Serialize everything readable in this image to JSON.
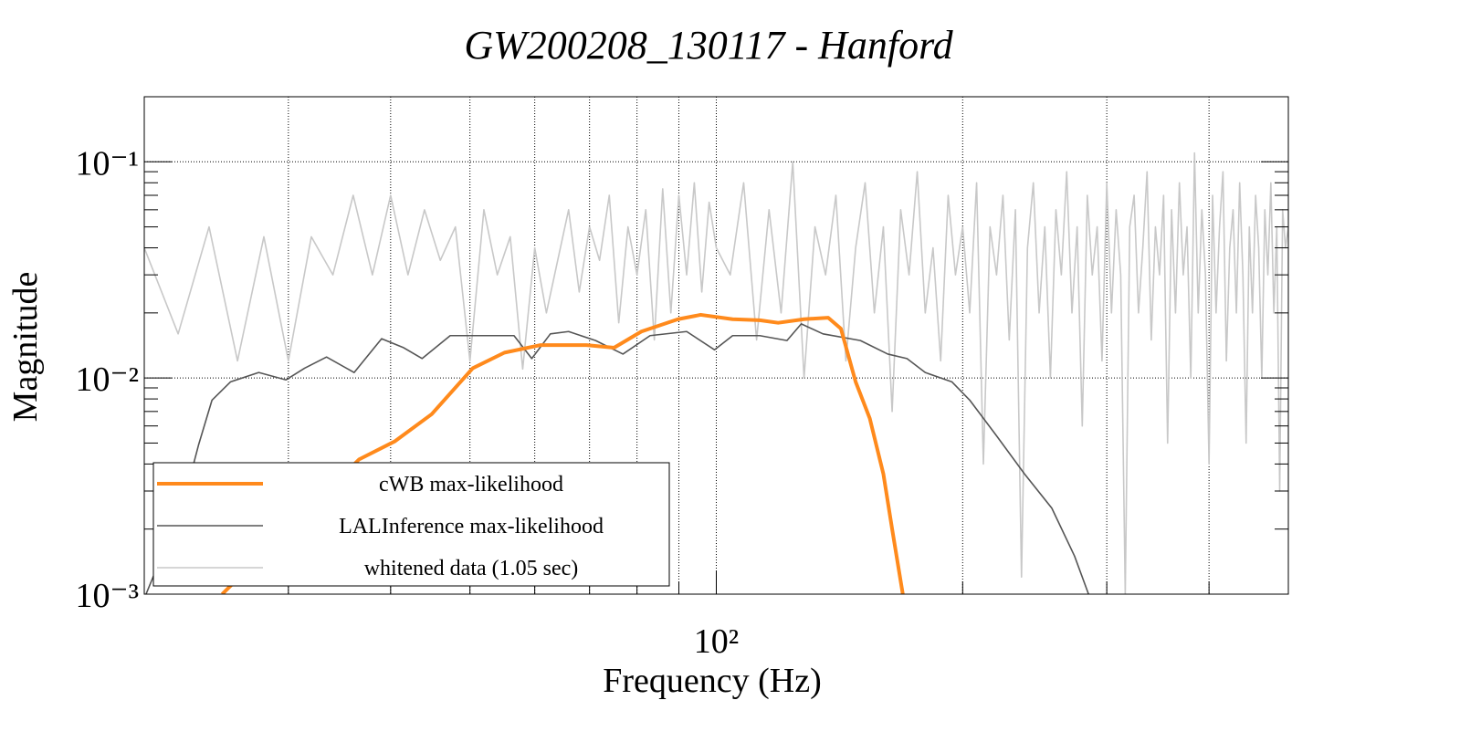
{
  "chart_data": {
    "type": "line",
    "title": "GW200208_130117 - Hanford",
    "x_label": "Frequency (Hz)",
    "y_label": "Magnitude",
    "log_x": true,
    "log_y": true,
    "grid": true,
    "legend_position": "lower-left",
    "xlim": [
      20,
      500
    ],
    "ylim": [
      0.001,
      0.2
    ],
    "xticks": [
      {
        "value": 100,
        "label": "10²"
      }
    ],
    "xgrid": [
      30,
      40,
      50,
      60,
      70,
      80,
      90,
      200,
      300,
      400
    ],
    "yticks": [
      {
        "value": 0.001,
        "label": "10⁻³"
      },
      {
        "value": 0.01,
        "label": "10⁻²"
      },
      {
        "value": 0.1,
        "label": "10⁻¹"
      }
    ],
    "series": [
      {
        "name": "cWB max-likelihood",
        "color": "#ff8a1c",
        "width": 4,
        "x": [
          24.9,
          36.6,
          40.5,
          44.9,
          50.4,
          55.1,
          61,
          69.4,
          75,
          81,
          89.8,
          95.7,
          104.7,
          113,
          119,
          128,
          137,
          142,
          148,
          154,
          160,
          164,
          169
        ],
        "values": [
          0.001,
          0.0042,
          0.0051,
          0.0068,
          0.0111,
          0.0131,
          0.0142,
          0.0142,
          0.0138,
          0.0164,
          0.0187,
          0.0196,
          0.0187,
          0.0185,
          0.018,
          0.0187,
          0.019,
          0.0169,
          0.0096,
          0.0065,
          0.0036,
          0.002,
          0.001
        ]
      },
      {
        "name": "LALInference max-likelihood",
        "color": "#555555",
        "width": 1.6,
        "x": [
          20.1,
          22.3,
          23.3,
          24.2,
          25.5,
          27.6,
          29.8,
          31.4,
          33.4,
          36.1,
          39,
          41.5,
          43.7,
          47.3,
          51,
          56.6,
          59.5,
          62.7,
          66,
          71.2,
          76.9,
          83,
          92,
          99.5,
          104.7,
          113,
          122,
          127,
          135,
          150,
          162,
          171,
          180,
          194,
          204,
          220,
          238,
          257,
          274,
          285
        ],
        "values": [
          0.001,
          0.0026,
          0.0049,
          0.0079,
          0.0096,
          0.0106,
          0.0098,
          0.0111,
          0.0125,
          0.0106,
          0.0152,
          0.0138,
          0.0123,
          0.0157,
          0.0157,
          0.0157,
          0.0123,
          0.016,
          0.0164,
          0.0149,
          0.0129,
          0.0157,
          0.0164,
          0.0135,
          0.0157,
          0.0157,
          0.0149,
          0.0178,
          0.016,
          0.0149,
          0.0129,
          0.0123,
          0.0106,
          0.0096,
          0.0079,
          0.0054,
          0.0036,
          0.0025,
          0.0015,
          0.001
        ]
      },
      {
        "name": "whitened data (1.05 sec)",
        "color": "#c8c8c8",
        "width": 1.6,
        "x": [
          20,
          22,
          24,
          26,
          28,
          30,
          32,
          34,
          36,
          38,
          40,
          42,
          44,
          46,
          48,
          50,
          52,
          54,
          56,
          58,
          60,
          62,
          64,
          66,
          68,
          70,
          72,
          74,
          76,
          78,
          80,
          82,
          84,
          86,
          88,
          90,
          92,
          94,
          96,
          98,
          100,
          104,
          108,
          112,
          116,
          120,
          124,
          128,
          132,
          136,
          140,
          144,
          148,
          152,
          156,
          160,
          164,
          168,
          172,
          176,
          180,
          184,
          188,
          192,
          196,
          200,
          204,
          208,
          212,
          216,
          220,
          224,
          228,
          232,
          236,
          240,
          244,
          248,
          252,
          256,
          260,
          264,
          268,
          272,
          276,
          280,
          284,
          288,
          292,
          296,
          300,
          304,
          308,
          312,
          316,
          320,
          324,
          328,
          332,
          336,
          340,
          344,
          348,
          352,
          356,
          360,
          364,
          368,
          372,
          376,
          380,
          384,
          388,
          392,
          396,
          400,
          404,
          408,
          412,
          416,
          420,
          424,
          428,
          432,
          436,
          440,
          444,
          448,
          452,
          456,
          460,
          464,
          468,
          472,
          476,
          480,
          484,
          488,
          492,
          496,
          500
        ],
        "values": [
          0.04,
          0.016,
          0.05,
          0.012,
          0.045,
          0.012,
          0.045,
          0.03,
          0.07,
          0.03,
          0.07,
          0.03,
          0.06,
          0.035,
          0.05,
          0.012,
          0.06,
          0.03,
          0.045,
          0.011,
          0.04,
          0.02,
          0.035,
          0.06,
          0.025,
          0.05,
          0.035,
          0.07,
          0.018,
          0.05,
          0.03,
          0.06,
          0.015,
          0.075,
          0.02,
          0.07,
          0.03,
          0.08,
          0.025,
          0.065,
          0.04,
          0.03,
          0.08,
          0.015,
          0.06,
          0.02,
          0.1,
          0.01,
          0.05,
          0.03,
          0.07,
          0.012,
          0.04,
          0.08,
          0.02,
          0.05,
          0.007,
          0.06,
          0.03,
          0.09,
          0.02,
          0.04,
          0.012,
          0.07,
          0.03,
          0.05,
          0.02,
          0.08,
          0.004,
          0.05,
          0.03,
          0.07,
          0.015,
          0.06,
          0.0012,
          0.04,
          0.08,
          0.02,
          0.05,
          0.01,
          0.06,
          0.03,
          0.09,
          0.02,
          0.05,
          0.006,
          0.07,
          0.03,
          0.05,
          0.012,
          0.08,
          0.02,
          0.06,
          0.03,
          0.001,
          0.05,
          0.07,
          0.02,
          0.04,
          0.09,
          0.015,
          0.05,
          0.03,
          0.07,
          0.005,
          0.06,
          0.02,
          0.08,
          0.03,
          0.05,
          0.01,
          0.11,
          0.02,
          0.06,
          0.03,
          0.004,
          0.07,
          0.02,
          0.05,
          0.09,
          0.012,
          0.04,
          0.06,
          0.02,
          0.08,
          0.03,
          0.005,
          0.05,
          0.02,
          0.07,
          0.04,
          0.01,
          0.06,
          0.03,
          0.08,
          0.02,
          0.05,
          0.003,
          0.06,
          0.04,
          0.05
        ]
      }
    ]
  }
}
